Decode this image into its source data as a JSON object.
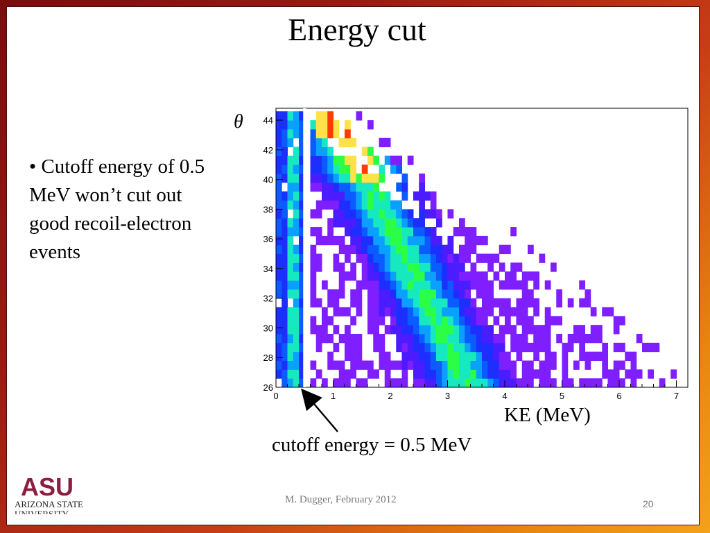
{
  "slide": {
    "title": "Energy cut",
    "bullet": "• Cutoff energy of 0.5 MeV won’t cut out good recoil-electron events",
    "annotation": "cutoff energy = 0.5 MeV",
    "footer": "M. Dugger, February 2012",
    "page_number": "20",
    "logo": {
      "letters": "ASU",
      "line1": "ARIZONA STATE",
      "line2": "UNIVERSITY",
      "color": "#8c1d40"
    }
  },
  "chart_data": {
    "type": "heatmap",
    "xlabel": "KE (MeV)",
    "ylabel": "θ",
    "xlim": [
      0,
      7.2
    ],
    "ylim": [
      26,
      44.8
    ],
    "xticks": [
      0,
      1,
      2,
      3,
      4,
      5,
      6,
      7
    ],
    "yticks": [
      26,
      28,
      30,
      32,
      34,
      36,
      38,
      40,
      42,
      44
    ],
    "bin_width_x": 0.1,
    "bin_height_y": 0.6,
    "cutoff_x": 0.5,
    "colormap": [
      "#7f1fff",
      "#4a1cff",
      "#1c2fff",
      "#0a5cff",
      "#0aa0ff",
      "#16e8c0",
      "#2aff46",
      "#ffe14a",
      "#ff3b00"
    ],
    "bands": [
      {
        "theta": 44.4,
        "x0": 0.8,
        "x1": 1.0
      },
      {
        "theta": 26.0,
        "x0": 5.0,
        "x1": 6.4
      }
    ]
  }
}
